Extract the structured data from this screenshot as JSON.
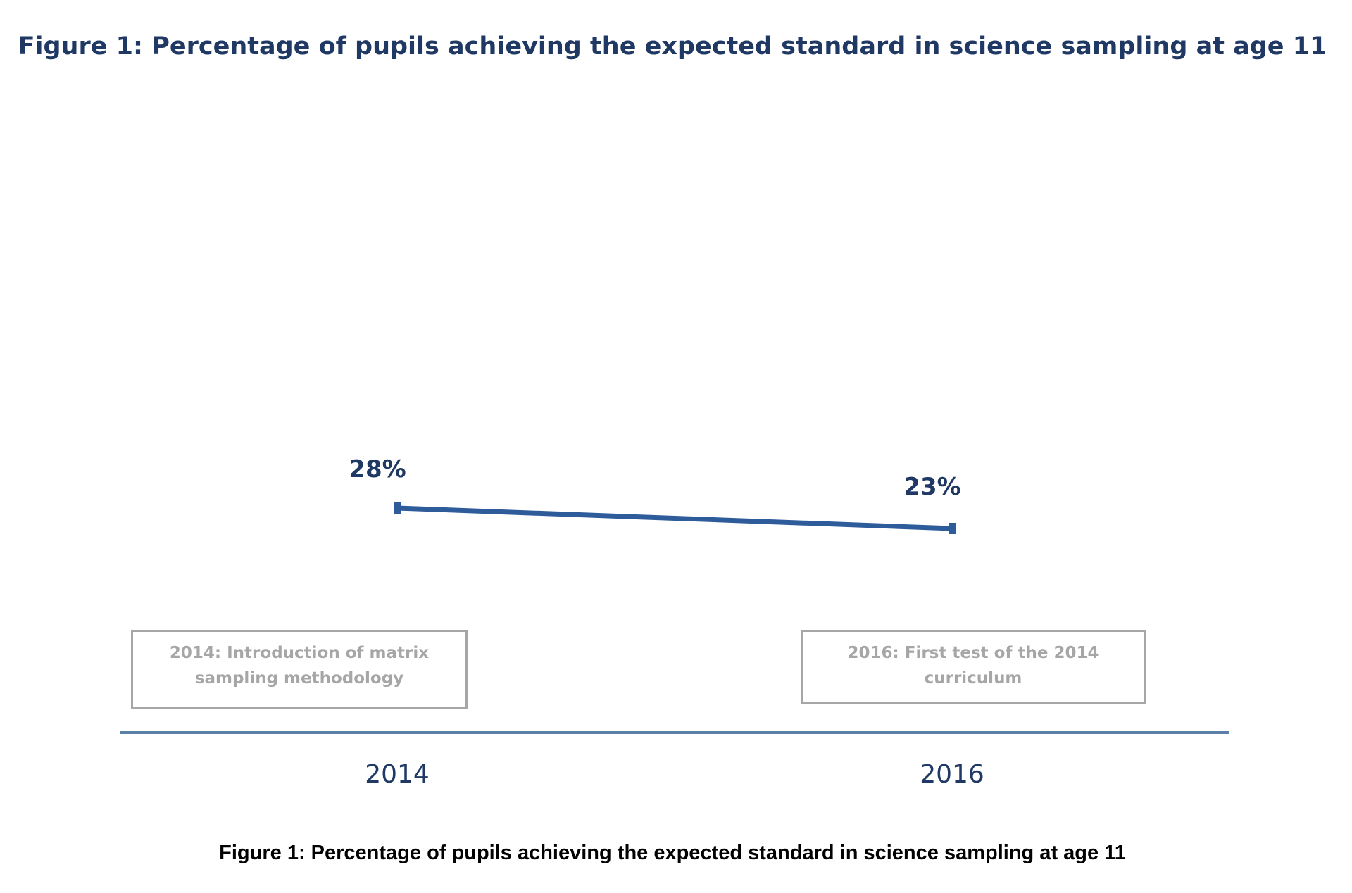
{
  "chart_data": {
    "type": "line",
    "title": "Figure 1: Percentage of pupils achieving the expected standard in science sampling at age 11",
    "categories": [
      "2014",
      "2016"
    ],
    "series": [
      {
        "values": [
          28,
          23
        ]
      }
    ],
    "data_labels": [
      "28%",
      "23%"
    ],
    "annotations": [
      "2014: Introduction of matrix sampling methodology",
      "2016: First test of the 2014 curriculum"
    ],
    "grid": false,
    "line_color": "#2e5c9a",
    "title_color": "#1f3864"
  },
  "caption": "Figure 1: Percentage of pupils achieving the expected standard in science sampling at age 11"
}
